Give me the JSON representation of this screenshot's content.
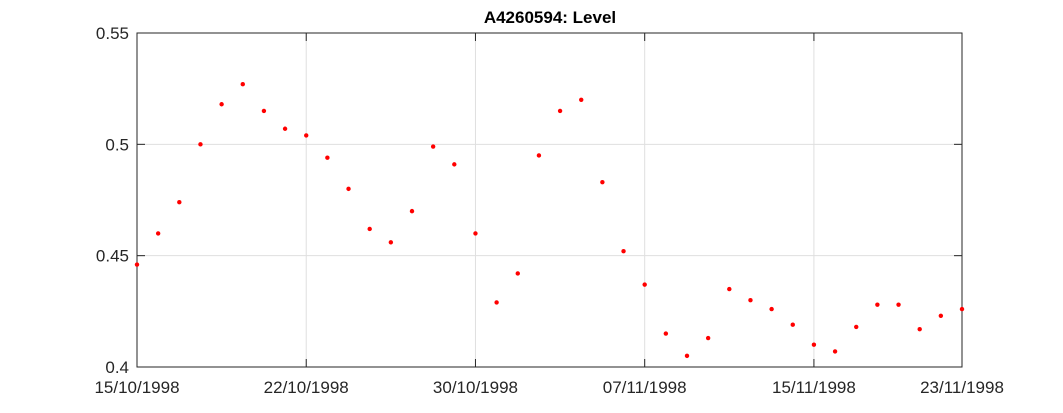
{
  "chart_data": {
    "type": "scatter",
    "title": "A4260594: Level",
    "xlabel": "",
    "ylabel": "",
    "xlim": [
      "1998-10-15",
      "1998-11-23"
    ],
    "ylim": [
      0.4,
      0.55
    ],
    "x_tick_labels": [
      "15/10/1998",
      "22/10/1998",
      "30/10/1998",
      "07/11/1998",
      "15/11/1998",
      "23/11/1998"
    ],
    "x_tick_dates": [
      "1998-10-15",
      "1998-10-23",
      "1998-10-31",
      "1998-11-08",
      "1998-11-16",
      "1998-11-23"
    ],
    "y_tick_labels": [
      "0.4",
      "0.45",
      "0.5",
      "0.55"
    ],
    "y_tick_values": [
      0.4,
      0.45,
      0.5,
      0.55
    ],
    "grid": true,
    "marker_color": "#ff0000",
    "series": [
      {
        "points": [
          {
            "x": "1998-10-15",
            "y": 0.446
          },
          {
            "x": "1998-10-16",
            "y": 0.46
          },
          {
            "x": "1998-10-17",
            "y": 0.474
          },
          {
            "x": "1998-10-18",
            "y": 0.5
          },
          {
            "x": "1998-10-19",
            "y": 0.518
          },
          {
            "x": "1998-10-20",
            "y": 0.527
          },
          {
            "x": "1998-10-21",
            "y": 0.515
          },
          {
            "x": "1998-10-22",
            "y": 0.507
          },
          {
            "x": "1998-10-23",
            "y": 0.504
          },
          {
            "x": "1998-10-24",
            "y": 0.494
          },
          {
            "x": "1998-10-25",
            "y": 0.48
          },
          {
            "x": "1998-10-26",
            "y": 0.462
          },
          {
            "x": "1998-10-27",
            "y": 0.456
          },
          {
            "x": "1998-10-28",
            "y": 0.47
          },
          {
            "x": "1998-10-29",
            "y": 0.499
          },
          {
            "x": "1998-10-30",
            "y": 0.491
          },
          {
            "x": "1998-10-31",
            "y": 0.46
          },
          {
            "x": "1998-11-01",
            "y": 0.429
          },
          {
            "x": "1998-11-02",
            "y": 0.442
          },
          {
            "x": "1998-11-03",
            "y": 0.495
          },
          {
            "x": "1998-11-04",
            "y": 0.515
          },
          {
            "x": "1998-11-05",
            "y": 0.52
          },
          {
            "x": "1998-11-06",
            "y": 0.483
          },
          {
            "x": "1998-11-07",
            "y": 0.452
          },
          {
            "x": "1998-11-08",
            "y": 0.437
          },
          {
            "x": "1998-11-09",
            "y": 0.415
          },
          {
            "x": "1998-11-10",
            "y": 0.405
          },
          {
            "x": "1998-11-11",
            "y": 0.413
          },
          {
            "x": "1998-11-12",
            "y": 0.435
          },
          {
            "x": "1998-11-13",
            "y": 0.43
          },
          {
            "x": "1998-11-14",
            "y": 0.426
          },
          {
            "x": "1998-11-15",
            "y": 0.419
          },
          {
            "x": "1998-11-16",
            "y": 0.41
          },
          {
            "x": "1998-11-17",
            "y": 0.407
          },
          {
            "x": "1998-11-18",
            "y": 0.418
          },
          {
            "x": "1998-11-19",
            "y": 0.428
          },
          {
            "x": "1998-11-20",
            "y": 0.428
          },
          {
            "x": "1998-11-21",
            "y": 0.417
          },
          {
            "x": "1998-11-22",
            "y": 0.423
          },
          {
            "x": "1998-11-23",
            "y": 0.426
          }
        ]
      }
    ]
  }
}
